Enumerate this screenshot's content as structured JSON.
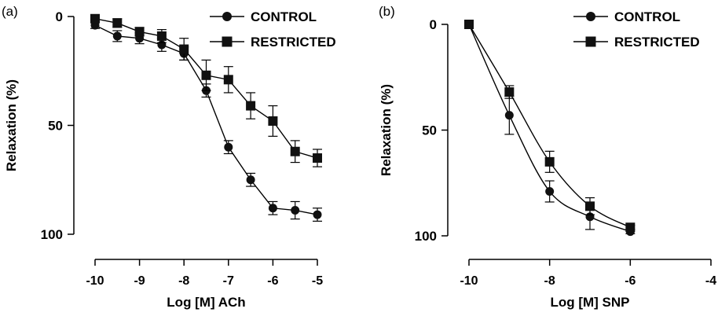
{
  "chart_data": [
    {
      "panel_label": "(a)",
      "type": "line",
      "xlabel": "Log [M] ACh",
      "ylabel": "Relaxation (%)",
      "xlim": [
        -10,
        -5
      ],
      "ylim": [
        0,
        100
      ],
      "y_inverted": true,
      "xticks": [
        -10,
        -9,
        -8,
        -7,
        -6,
        -5
      ],
      "xtick_labels": [
        "-10",
        "-9",
        "-8",
        "-7",
        "-6",
        "-5"
      ],
      "yticks": [
        0,
        50,
        100
      ],
      "ytick_labels": [
        "0",
        "50",
        "100"
      ],
      "legend_position": "top-right",
      "grid": false,
      "x": [
        -10,
        -9.5,
        -9,
        -8.5,
        -8,
        -7.5,
        -7,
        -6.5,
        -6,
        -5.5,
        -5
      ],
      "series": [
        {
          "name": "CONTROL",
          "marker": "circle",
          "connect": "straight",
          "values": [
            4,
            9,
            10,
            13,
            17,
            34,
            60,
            75,
            88,
            89,
            91
          ],
          "errors": [
            1.5,
            2.5,
            2.5,
            3,
            3,
            3,
            3,
            3,
            3,
            4,
            3
          ]
        },
        {
          "name": "RESTRICTED",
          "marker": "square",
          "connect": "straight",
          "values": [
            1,
            3,
            7,
            9,
            15,
            27,
            29,
            41,
            48,
            62,
            65
          ],
          "errors": [
            1.5,
            2,
            2,
            3,
            5,
            7,
            6,
            6,
            7,
            5,
            4
          ]
        }
      ]
    },
    {
      "panel_label": "(b)",
      "type": "line",
      "xlabel": "Log [M] SNP",
      "ylabel": "Relaxation (%)",
      "xlim": [
        -10,
        -4
      ],
      "ylim": [
        0,
        100
      ],
      "y_inverted": true,
      "xticks": [
        -10,
        -8,
        -6,
        -4
      ],
      "xtick_labels": [
        "-10",
        "-8",
        "-6",
        "-4"
      ],
      "yticks": [
        0,
        50,
        100
      ],
      "ytick_labels": [
        "0",
        "50",
        "100"
      ],
      "legend_position": "top-right",
      "grid": false,
      "x": [
        -10,
        -9,
        -8,
        -7,
        -6
      ],
      "series": [
        {
          "name": "CONTROL",
          "marker": "circle",
          "connect": "smooth",
          "values": [
            0,
            43,
            79,
            91,
            98
          ],
          "errors": [
            0,
            9,
            5,
            6,
            1
          ]
        },
        {
          "name": "RESTRICTED",
          "marker": "square",
          "connect": "smooth",
          "values": [
            0,
            32,
            65,
            86,
            96
          ],
          "errors": [
            0,
            3,
            5,
            4,
            1
          ]
        }
      ]
    }
  ]
}
